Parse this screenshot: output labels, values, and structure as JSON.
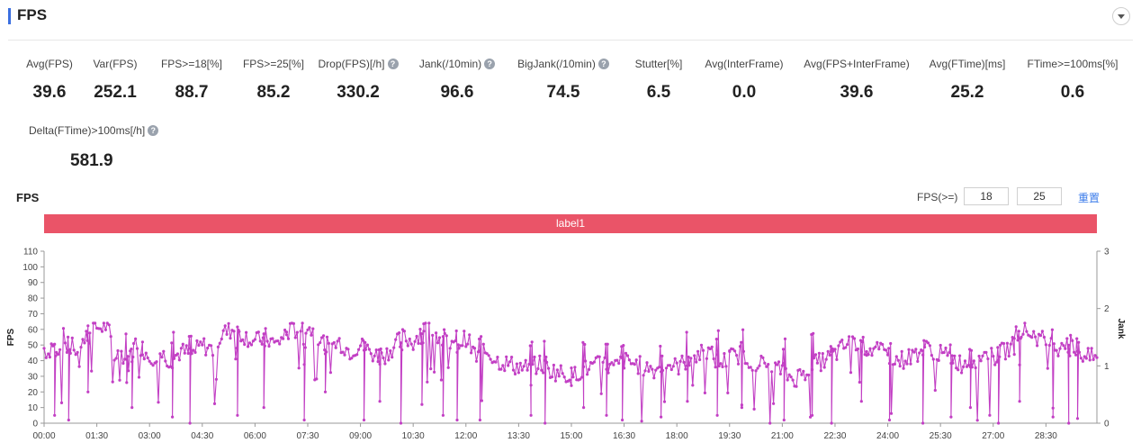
{
  "header": {
    "title": "FPS"
  },
  "metrics_row1": [
    {
      "label": "Avg(FPS)",
      "value": "39.6",
      "help": false
    },
    {
      "label": "Var(FPS)",
      "value": "252.1",
      "help": false
    },
    {
      "label": "FPS>=18[%]",
      "value": "88.7",
      "help": false
    },
    {
      "label": "FPS>=25[%]",
      "value": "85.2",
      "help": false
    },
    {
      "label": "Drop(FPS)[/h]",
      "value": "330.2",
      "help": true
    },
    {
      "label": "Jank(/10min)",
      "value": "96.6",
      "help": true
    },
    {
      "label": "BigJank(/10min)",
      "value": "74.5",
      "help": true
    },
    {
      "label": "Stutter[%]",
      "value": "6.5",
      "help": false
    },
    {
      "label": "Avg(InterFrame)",
      "value": "0.0",
      "help": false
    },
    {
      "label": "Avg(FPS+InterFrame)",
      "value": "39.6",
      "help": false
    },
    {
      "label": "Avg(FTime)[ms]",
      "value": "25.2",
      "help": false
    },
    {
      "label": "FTime>=100ms[%]",
      "value": "0.6",
      "help": false
    }
  ],
  "metrics_row2": [
    {
      "label": "Delta(FTime)>100ms[/h]",
      "value": "581.9",
      "help": true
    }
  ],
  "help_glyph": "?",
  "chart_header": {
    "title": "FPS",
    "threshold_label": "FPS(>=)",
    "threshold_low": "18",
    "threshold_high": "25",
    "reset_label": "重置"
  },
  "label_band": {
    "text": "label1",
    "color": "#ea5468"
  },
  "chart_data": {
    "type": "line",
    "title": "FPS",
    "xlabel": "",
    "ylabel": "FPS",
    "y2label": "Jank",
    "ylim": [
      0,
      110
    ],
    "y2lim": [
      0,
      3
    ],
    "yticks": [
      0,
      10,
      20,
      30,
      40,
      50,
      60,
      70,
      80,
      90,
      100,
      110
    ],
    "y2ticks": [
      0,
      1,
      2,
      3
    ],
    "xlim_minutes": [
      0,
      29.95
    ],
    "xtick_labels": [
      "00:00",
      "01:30",
      "03:00",
      "04:30",
      "06:00",
      "07:30",
      "09:00",
      "10:30",
      "12:00",
      "13:30",
      "15:00",
      "16:30",
      "18:00",
      "19:30",
      "21:00",
      "22:30",
      "24:00",
      "25:30",
      "27:00",
      "28:30"
    ],
    "grid": false,
    "series": [
      {
        "color": "#c23fc4",
        "segments": [
          {
            "x": [
              0,
              0.12,
              0.25,
              0.4,
              0.55,
              0.7,
              0.85,
              1.0,
              1.2,
              1.4,
              1.6,
              1.8,
              2.0,
              2.2,
              2.4,
              2.6,
              2.8
            ],
            "y": [
              48,
              45,
              52,
              42,
              55,
              46,
              50,
              38,
              60,
              62,
              61,
              63,
              42,
              45,
              38,
              52,
              48
            ]
          },
          {
            "x": [
              2.8,
              3.0,
              3.3,
              3.6,
              3.9,
              4.2,
              4.5,
              4.8,
              5.1,
              5.4,
              5.7,
              6.0,
              6.3,
              6.6,
              6.9
            ],
            "y": [
              48,
              42,
              45,
              40,
              46,
              44,
              50,
              47,
              58,
              60,
              56,
              52,
              55,
              50,
              58
            ]
          },
          {
            "x": [
              6.9,
              7.2,
              7.5,
              7.8,
              8.1,
              8.4,
              8.7,
              9.0,
              9.3,
              9.6,
              9.9,
              10.2,
              10.5,
              10.8
            ],
            "y": [
              58,
              60,
              62,
              55,
              48,
              52,
              46,
              50,
              45,
              42,
              48,
              55,
              52,
              62
            ]
          },
          {
            "x": [
              10.8,
              11.1,
              11.4,
              11.7,
              12.0,
              12.3,
              12.6,
              12.9,
              13.2,
              13.5,
              13.8,
              14.1,
              14.4,
              14.7,
              15.0
            ],
            "y": [
              62,
              58,
              52,
              48,
              55,
              42,
              46,
              40,
              38,
              36,
              35,
              38,
              34,
              32,
              30
            ]
          },
          {
            "x": [
              15.0,
              15.3,
              15.6,
              15.9,
              16.2,
              16.5,
              16.8,
              17.1,
              17.4,
              17.7,
              18.0,
              18.3,
              18.6,
              18.9,
              19.2,
              19.5
            ],
            "y": [
              30,
              34,
              36,
              38,
              35,
              40,
              38,
              36,
              34,
              38,
              36,
              40,
              44,
              46,
              38,
              42
            ]
          },
          {
            "x": [
              19.5,
              19.8,
              20.1,
              20.4,
              20.7,
              21.0,
              21.3,
              21.6,
              21.9,
              22.2,
              22.5,
              22.8,
              23.1,
              23.4
            ],
            "y": [
              42,
              44,
              40,
              38,
              36,
              34,
              28,
              32,
              38,
              40,
              44,
              50,
              52,
              48
            ]
          },
          {
            "x": [
              23.4,
              23.7,
              24.0,
              24.3,
              24.6,
              24.9,
              25.2,
              25.5,
              25.8,
              26.1,
              26.4,
              26.7,
              27.0,
              27.3,
              27.6
            ],
            "y": [
              48,
              46,
              44,
              40,
              42,
              46,
              48,
              44,
              42,
              38,
              40,
              44,
              42,
              46,
              50
            ]
          },
          {
            "x": [
              27.6,
              27.9,
              28.2,
              28.5,
              28.8,
              29.1,
              29.4,
              29.7,
              29.95
            ],
            "y": [
              58,
              60,
              56,
              52,
              48,
              54,
              46,
              42,
              42
            ]
          }
        ],
        "drops": [
          {
            "x": 0.3,
            "y": 5
          },
          {
            "x": 0.7,
            "y": 2
          },
          {
            "x": 1.25,
            "y": 20
          },
          {
            "x": 2.35,
            "y": 26
          },
          {
            "x": 2.5,
            "y": 10
          },
          {
            "x": 3.65,
            "y": 4
          },
          {
            "x": 4.15,
            "y": 0
          },
          {
            "x": 5.5,
            "y": 5
          },
          {
            "x": 6.25,
            "y": 10
          },
          {
            "x": 7.4,
            "y": 2
          },
          {
            "x": 8.0,
            "y": 20
          },
          {
            "x": 9.1,
            "y": 2
          },
          {
            "x": 9.55,
            "y": 14
          },
          {
            "x": 10.15,
            "y": 0
          },
          {
            "x": 10.75,
            "y": 12
          },
          {
            "x": 11.35,
            "y": 5
          },
          {
            "x": 11.75,
            "y": 2
          },
          {
            "x": 12.4,
            "y": 2
          },
          {
            "x": 13.85,
            "y": 5
          },
          {
            "x": 14.25,
            "y": 0
          },
          {
            "x": 15.35,
            "y": 10
          },
          {
            "x": 16.0,
            "y": 5
          },
          {
            "x": 16.45,
            "y": 2
          },
          {
            "x": 17.55,
            "y": 4
          },
          {
            "x": 18.3,
            "y": 14
          },
          {
            "x": 19.15,
            "y": 5
          },
          {
            "x": 19.85,
            "y": 10
          },
          {
            "x": 21.05,
            "y": 2
          },
          {
            "x": 21.85,
            "y": 5
          },
          {
            "x": 22.4,
            "y": 0
          },
          {
            "x": 23.25,
            "y": 14
          },
          {
            "x": 24.05,
            "y": 2
          },
          {
            "x": 25.0,
            "y": 0
          },
          {
            "x": 25.8,
            "y": 4
          },
          {
            "x": 26.35,
            "y": 10
          },
          {
            "x": 27.15,
            "y": 0
          },
          {
            "x": 27.75,
            "y": 14
          },
          {
            "x": 28.7,
            "y": 4
          },
          {
            "x": 29.15,
            "y": 0
          },
          {
            "x": 29.4,
            "y": 3
          }
        ]
      }
    ]
  }
}
